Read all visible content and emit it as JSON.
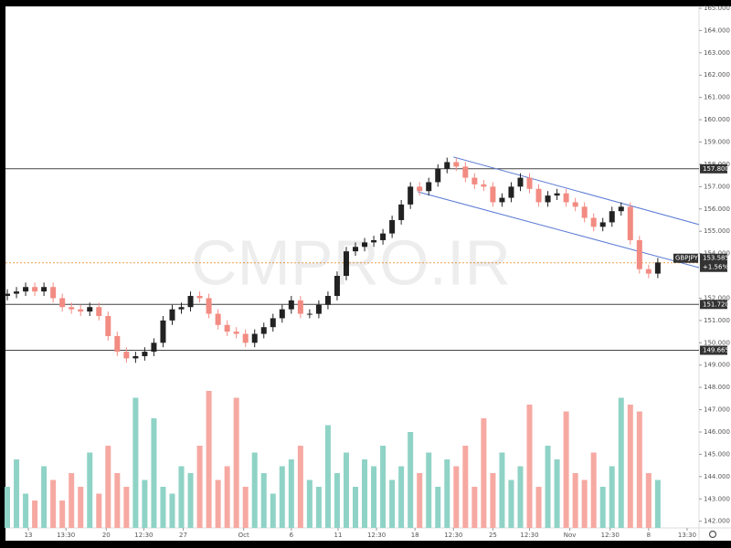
{
  "chart_data": {
    "type": "candlestick",
    "watermark": "CMPRO.IR",
    "symbol": "GBPJPY",
    "change": "+1.56%",
    "ylim": [
      141.7,
      165.04
    ],
    "xlim": [
      -0.2,
      75.5
    ],
    "yticks": [
      {
        "value": 142,
        "label": "142.000"
      },
      {
        "value": 143,
        "label": "143.000"
      },
      {
        "value": 144,
        "label": "144.000"
      },
      {
        "value": 145,
        "label": "145.000"
      },
      {
        "value": 146,
        "label": "146.000"
      },
      {
        "value": 147,
        "label": "147.000"
      },
      {
        "value": 148,
        "label": "148.000"
      },
      {
        "value": 149,
        "label": "149.000"
      },
      {
        "value": 150,
        "label": "150.000"
      },
      {
        "value": 151,
        "label": "151.000"
      },
      {
        "value": 152,
        "label": "152.000"
      },
      {
        "value": 154,
        "label": "154.000"
      },
      {
        "value": 155,
        "label": "155.000"
      },
      {
        "value": 156,
        "label": "156.000"
      },
      {
        "value": 157,
        "label": "157.000"
      },
      {
        "value": 158,
        "label": "158.000"
      },
      {
        "value": 159,
        "label": "159.000"
      },
      {
        "value": 160,
        "label": "160.000"
      },
      {
        "value": 161,
        "label": "161.000"
      },
      {
        "value": 162,
        "label": "162.000"
      },
      {
        "value": 163,
        "label": "163.000"
      },
      {
        "value": 164,
        "label": "164.000"
      },
      {
        "value": 165,
        "label": "165.000"
      }
    ],
    "xticks": [
      {
        "value": 2.3,
        "label": "13"
      },
      {
        "value": 6.4,
        "label": "13:30"
      },
      {
        "value": 10.8,
        "label": "20"
      },
      {
        "value": 14.9,
        "label": "12:30"
      },
      {
        "value": 19.2,
        "label": "27"
      },
      {
        "value": 25.8,
        "label": "Oct"
      },
      {
        "value": 31,
        "label": "6"
      },
      {
        "value": 36.1,
        "label": "11"
      },
      {
        "value": 40.3,
        "label": "12:30"
      },
      {
        "value": 44.5,
        "label": "18"
      },
      {
        "value": 48.7,
        "label": "12:30"
      },
      {
        "value": 53,
        "label": "25"
      },
      {
        "value": 57,
        "label": "12:30"
      },
      {
        "value": 61.4,
        "label": "Nov"
      },
      {
        "value": 65.8,
        "label": "12:30"
      },
      {
        "value": 70,
        "label": "8"
      },
      {
        "value": 74.2,
        "label": "13:30"
      }
    ],
    "levels": [
      {
        "value": 157.8,
        "label": "157.800"
      },
      {
        "value": 151.72,
        "label": "151.720"
      },
      {
        "value": 149.665,
        "label": "149.665"
      }
    ],
    "last_price": {
      "value": 153.585,
      "label": "153.585"
    },
    "trendlines": [
      {
        "x": [
          48.7,
          75.5
        ],
        "y": [
          158.33,
          155.3
        ]
      },
      {
        "x": [
          44.8,
          75.5
        ],
        "y": [
          156.77,
          153.37
        ]
      }
    ],
    "up_color": "#222222",
    "down_color": "#f28b82",
    "volume_up_color": "#8fd3c6",
    "volume_down_color": "#f6a9a2",
    "volume_lim": [
      0,
      100
    ],
    "open": [
      152.1,
      152.2,
      152.3,
      152.5,
      152.3,
      152.5,
      152.0,
      151.6,
      151.5,
      151.4,
      151.6,
      151.2,
      150.3,
      149.6,
      149.3,
      149.4,
      149.6,
      150.0,
      151.0,
      151.5,
      151.6,
      152.1,
      152.0,
      151.3,
      150.8,
      150.5,
      150.4,
      150.0,
      150.4,
      150.7,
      151.1,
      151.5,
      151.9,
      151.3,
      151.3,
      151.7,
      152.1,
      153.0,
      154.1,
      154.3,
      154.5,
      154.6,
      154.9,
      155.5,
      156.2,
      157.0,
      156.8,
      157.2,
      157.8,
      158.1,
      157.9,
      157.4,
      157.1,
      157.0,
      156.3,
      156.5,
      157.0,
      157.4,
      156.9,
      156.3,
      156.6,
      156.7,
      156.3,
      156.1,
      155.6,
      155.2,
      155.4,
      155.9,
      156.1,
      154.6,
      153.3,
      153.1
    ],
    "high": [
      152.4,
      152.5,
      152.7,
      152.7,
      152.7,
      152.7,
      152.2,
      151.8,
      151.7,
      151.8,
      151.8,
      151.4,
      150.5,
      149.8,
      149.6,
      149.8,
      150.2,
      151.2,
      151.7,
      151.8,
      152.3,
      152.3,
      152.2,
      151.5,
      151.0,
      150.7,
      150.6,
      150.6,
      150.9,
      151.3,
      151.7,
      152.1,
      152.1,
      151.5,
      151.9,
      152.3,
      153.2,
      154.3,
      154.5,
      154.7,
      154.8,
      155.1,
      155.7,
      156.4,
      157.2,
      157.2,
      157.4,
      158.0,
      158.3,
      158.3,
      158.1,
      157.6,
      157.3,
      157.2,
      156.7,
      157.2,
      157.6,
      157.6,
      157.1,
      156.8,
      156.9,
      156.9,
      156.5,
      156.3,
      155.8,
      155.6,
      156.1,
      156.3,
      156.3,
      154.8,
      153.5,
      153.8
    ],
    "low": [
      151.9,
      152.0,
      152.1,
      152.1,
      152.1,
      151.8,
      151.4,
      151.3,
      151.2,
      151.2,
      151.0,
      150.1,
      149.4,
      149.1,
      149.1,
      149.2,
      149.4,
      149.8,
      150.8,
      151.3,
      151.4,
      151.8,
      151.1,
      150.6,
      150.3,
      150.2,
      149.8,
      149.8,
      150.2,
      150.5,
      150.9,
      151.3,
      151.1,
      151.1,
      151.1,
      151.5,
      151.9,
      152.8,
      153.9,
      154.1,
      154.3,
      154.4,
      154.7,
      155.3,
      156.0,
      156.6,
      156.6,
      157.0,
      157.6,
      157.7,
      157.2,
      156.9,
      156.8,
      156.1,
      156.1,
      156.3,
      156.8,
      156.7,
      156.1,
      156.1,
      156.4,
      156.1,
      155.9,
      155.4,
      155.0,
      155.0,
      155.2,
      155.7,
      154.4,
      153.1,
      152.9,
      152.9
    ],
    "close": [
      152.2,
      152.3,
      152.5,
      152.3,
      152.5,
      152.0,
      151.6,
      151.5,
      151.4,
      151.6,
      151.2,
      150.3,
      149.6,
      149.3,
      149.4,
      149.6,
      150.0,
      151.0,
      151.5,
      151.6,
      152.1,
      152.0,
      151.3,
      150.8,
      150.5,
      150.4,
      150.0,
      150.4,
      150.7,
      151.1,
      151.5,
      151.9,
      151.3,
      151.3,
      151.7,
      152.1,
      153.0,
      154.1,
      154.3,
      154.5,
      154.6,
      154.9,
      155.5,
      156.2,
      157.0,
      156.8,
      157.2,
      157.8,
      158.1,
      157.9,
      157.4,
      157.1,
      157.0,
      156.3,
      156.5,
      157.0,
      157.4,
      156.9,
      156.3,
      156.6,
      156.7,
      156.3,
      156.1,
      155.6,
      155.2,
      155.4,
      155.9,
      156.1,
      154.6,
      153.3,
      153.1,
      153.6
    ],
    "volume": [
      30,
      50,
      25,
      20,
      45,
      35,
      20,
      40,
      30,
      55,
      25,
      60,
      40,
      30,
      95,
      35,
      80,
      30,
      25,
      45,
      40,
      60,
      100,
      35,
      45,
      95,
      30,
      55,
      40,
      25,
      45,
      50,
      60,
      35,
      30,
      75,
      40,
      55,
      30,
      50,
      45,
      60,
      35,
      45,
      70,
      40,
      55,
      30,
      50,
      45,
      60,
      30,
      80,
      40,
      55,
      35,
      45,
      90,
      30,
      60,
      50,
      85,
      40,
      35,
      55,
      30,
      45,
      95,
      90,
      85,
      40,
      35
    ]
  }
}
